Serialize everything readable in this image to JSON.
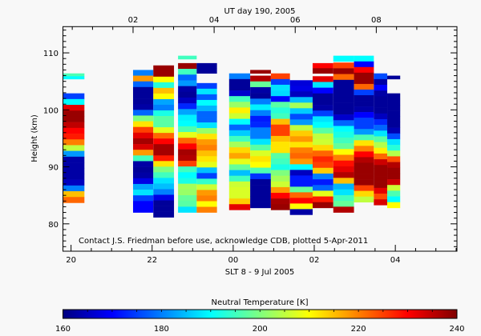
{
  "chart_data": {
    "type": "heatmap",
    "title_top": "UT day 190, 2005",
    "xlabel": "SLT 8 - 9 Jul 2005",
    "ylabel": "Height (km)",
    "note": "Contact J.S. Friedman before use, acknowledge CDB, plotted 5-Apr-2011",
    "xlim": [
      19.8,
      29.52
    ],
    "ylim": [
      75.2,
      114.6
    ],
    "x_ticks": [
      {
        "v": 20,
        "label": "20"
      },
      {
        "v": 22,
        "label": "22"
      },
      {
        "v": 24,
        "label": "00"
      },
      {
        "v": 26,
        "label": "02"
      },
      {
        "v": 28,
        "label": "04"
      }
    ],
    "top_ticks": [
      {
        "v": 21.53,
        "label": "02"
      },
      {
        "v": 23.53,
        "label": "04"
      },
      {
        "v": 25.53,
        "label": "06"
      },
      {
        "v": 27.53,
        "label": "08"
      }
    ],
    "y_ticks": [
      80,
      90,
      100,
      110
    ],
    "colorbar": {
      "title": "Neutral Temperature [K]",
      "range": [
        160,
        240
      ],
      "ticks": [
        "160",
        "180",
        "200",
        "220",
        "240"
      ],
      "colormap": [
        "#00007f",
        "#0000ff",
        "#007fff",
        "#00ffff",
        "#7fff7f",
        "#ffff00",
        "#ff7f00",
        "#ff0000",
        "#7f0000"
      ]
    },
    "columns": [
      {
        "t0": 19.8,
        "t1": 20.33,
        "top": 106.4,
        "bottom": 105.4,
        "T": [
          196,
          190
        ]
      },
      {
        "t0": 19.8,
        "t1": 20.33,
        "top": 102.9,
        "bottom": 83.7,
        "T": [
          175,
          190,
          232,
          238,
          238,
          235,
          230,
          228,
          220,
          205,
          182,
          163,
          163,
          163,
          163,
          165,
          180,
          215,
          222
        ]
      },
      {
        "t0": 21.53,
        "t1": 22.03,
        "top": 107.0,
        "bottom": 82.0,
        "T": [
          180,
          218,
          178,
          162,
          162,
          162,
          163,
          178,
          200,
          212,
          225,
          232,
          237,
          233,
          218,
          195,
          163,
          162,
          163,
          168,
          183,
          188,
          175,
          170,
          170
        ]
      },
      {
        "t0": 22.03,
        "t1": 22.54,
        "top": 107.8,
        "bottom": 81.15,
        "T": [
          238,
          238,
          210,
          193,
          215,
          210,
          183,
          180,
          192,
          197,
          197,
          208,
          222,
          230,
          237,
          237,
          228,
          212,
          200,
          195,
          188,
          185,
          180,
          168,
          162,
          162,
          162
        ]
      },
      {
        "t0": 22.64,
        "t1": 23.1,
        "top": 109.5,
        "bottom": 108.9,
        "T": [
          195
        ]
      },
      {
        "t0": 22.64,
        "t1": 23.1,
        "top": 108.2,
        "bottom": 82.0,
        "T": [
          238,
          195,
          178,
          182,
          163,
          162,
          165,
          173,
          183,
          189,
          190,
          196,
          208,
          222,
          230,
          237,
          236,
          225,
          195,
          190,
          192,
          203,
          202,
          198,
          197,
          188
        ]
      },
      {
        "t0": 23.1,
        "t1": 23.6,
        "top": 108.2,
        "bottom": 106.4,
        "T": [
          162,
          162
        ]
      },
      {
        "t0": 23.1,
        "t1": 23.6,
        "top": 104.7,
        "bottom": 82.0,
        "T": [
          175,
          188,
          177,
          190,
          184,
          178,
          178,
          188,
          202,
          212,
          218,
          220,
          215,
          212,
          208,
          185,
          175,
          194,
          206,
          218,
          220,
          210,
          220
        ]
      },
      {
        "t0": 23.9,
        "t1": 24.42,
        "top": 106.4,
        "bottom": 82.45,
        "T": [
          180,
          162,
          162,
          166,
          195,
          202,
          211,
          206,
          190,
          178,
          186,
          195,
          203,
          213,
          217,
          208,
          198,
          185,
          195,
          206,
          207,
          207,
          214,
          232
        ]
      },
      {
        "t0": 24.42,
        "t1": 24.93,
        "top": 107.0,
        "bottom": 106.4,
        "T": [
          238
        ]
      },
      {
        "t0": 24.42,
        "t1": 24.93,
        "top": 106.0,
        "bottom": 82.8,
        "T": [
          236,
          198,
          163,
          162,
          180,
          189,
          180,
          172,
          173,
          180,
          180,
          188,
          197,
          207,
          212,
          210,
          196,
          174,
          162,
          162,
          162,
          162,
          162
        ]
      },
      {
        "t0": 24.93,
        "t1": 25.4,
        "top": 106.4,
        "bottom": 82.45,
        "T": [
          225,
          175,
          188,
          187,
          170,
          197,
          193,
          195,
          215,
          225,
          225,
          215,
          212,
          212,
          197,
          195,
          192,
          200,
          203,
          206,
          218,
          230,
          237,
          238
        ]
      },
      {
        "t0": 25.4,
        "t1": 25.96,
        "top": 105.2,
        "bottom": 81.6,
        "T": [
          167,
          168,
          165,
          185,
          203,
          186,
          176,
          182,
          205,
          214,
          218,
          212,
          220,
          222,
          218,
          190,
          165,
          172,
          172,
          198,
          222,
          230,
          210,
          163
        ]
      },
      {
        "t0": 25.96,
        "t1": 26.47,
        "top": 108.2,
        "bottom": 106.4,
        "T": [
          230,
          238
        ]
      },
      {
        "t0": 25.96,
        "t1": 26.47,
        "top": 105.9,
        "bottom": 82.8,
        "T": [
          232,
          188,
          170,
          162,
          162,
          163,
          175,
          188,
          190,
          197,
          205,
          206,
          213,
          222,
          227,
          225,
          214,
          180,
          172,
          178,
          208,
          228,
          238
        ]
      },
      {
        "t0": 26.47,
        "t1": 26.98,
        "top": 109.5,
        "bottom": 108.5,
        "T": [
          190
        ]
      },
      {
        "t0": 26.47,
        "t1": 26.98,
        "top": 108.3,
        "bottom": 82.0,
        "T": [
          225,
          238,
          222,
          162,
          162,
          162,
          162,
          162,
          162,
          166,
          178,
          190,
          192,
          195,
          198,
          210,
          220,
          229,
          232,
          236,
          215,
          184,
          188,
          195,
          198,
          236
        ]
      },
      {
        "t0": 26.98,
        "t1": 27.47,
        "top": 109.5,
        "bottom": 108.5,
        "T": [
          190
        ]
      },
      {
        "t0": 26.98,
        "t1": 27.47,
        "top": 108.5,
        "bottom": 83.8,
        "T": [
          170,
          230,
          238,
          238,
          222,
          175,
          162,
          162,
          163,
          170,
          175,
          175,
          182,
          196,
          212,
          220,
          230,
          236,
          238,
          238,
          238,
          238,
          225,
          213,
          205
        ]
      },
      {
        "t0": 27.47,
        "t1": 27.8,
        "top": 106.4,
        "bottom": 83.3,
        "T": [
          176,
          163,
          170,
          163,
          162,
          162,
          162,
          165,
          173,
          178,
          188,
          197,
          204,
          211,
          222,
          234,
          238,
          238,
          238,
          238,
          232,
          224,
          233
        ]
      },
      {
        "t0": 27.8,
        "t1": 28.12,
        "top": 106.0,
        "bottom": 105.4,
        "T": [
          162
        ]
      },
      {
        "t0": 27.8,
        "t1": 28.12,
        "top": 102.9,
        "bottom": 82.8,
        "T": [
          162,
          162,
          162,
          162,
          162,
          162,
          164,
          176,
          188,
          193,
          204,
          224,
          236,
          238,
          238,
          234,
          206,
          196,
          190,
          210
        ]
      }
    ]
  }
}
